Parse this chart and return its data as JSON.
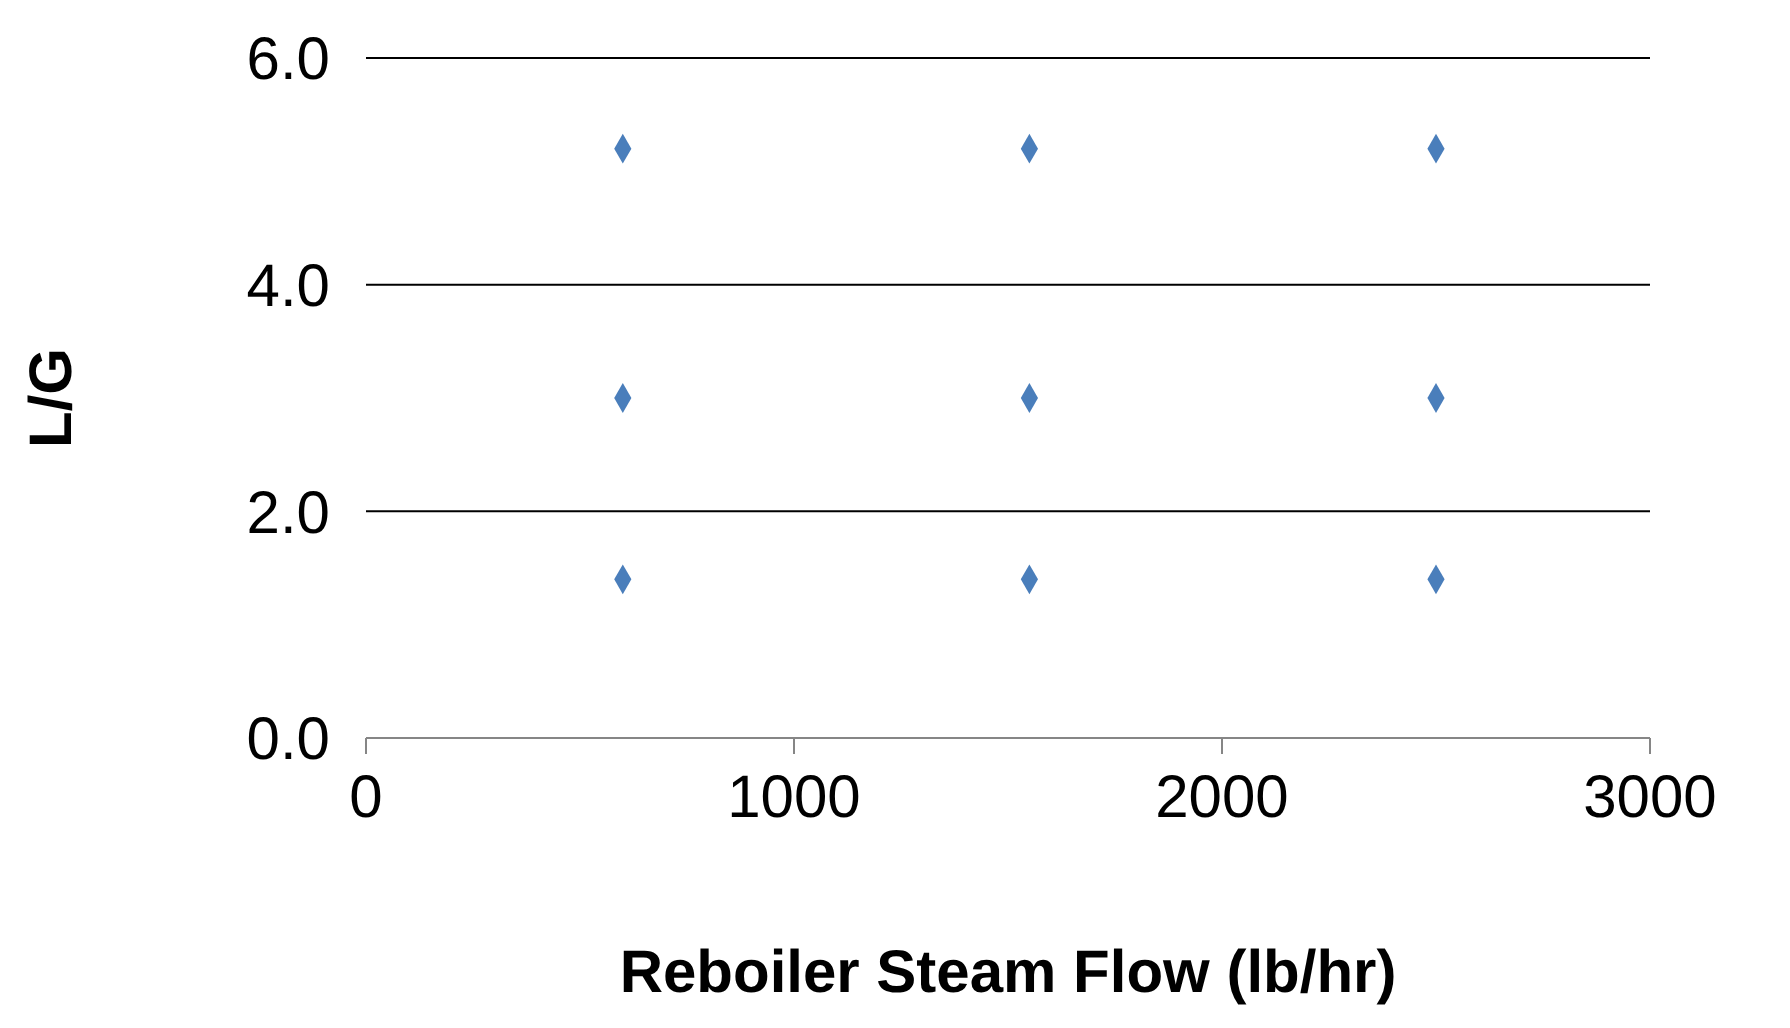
{
  "chart_data": {
    "type": "scatter",
    "xlabel": "Reboiler Steam Flow (lb/hr)",
    "ylabel": "L/G",
    "x": [
      600,
      1550,
      2500,
      600,
      1550,
      2500,
      600,
      1550,
      2500
    ],
    "series": [
      {
        "color": "#4a7ebb",
        "values": [
          5.2,
          5.2,
          5.2,
          3.0,
          3.0,
          3.0,
          1.4,
          1.4,
          1.4
        ]
      }
    ],
    "xlim": [
      0,
      3000
    ],
    "xticks": [
      0,
      1000,
      2000,
      3000
    ],
    "ylim": [
      0,
      6
    ],
    "yticks": [
      {
        "value": 0,
        "label": "0.0"
      },
      {
        "value": 2,
        "label": "2.0"
      },
      {
        "value": 4,
        "label": "4.0"
      },
      {
        "value": 6,
        "label": "6.0"
      }
    ],
    "grid": "y",
    "marker": "diamond",
    "legend": false
  }
}
